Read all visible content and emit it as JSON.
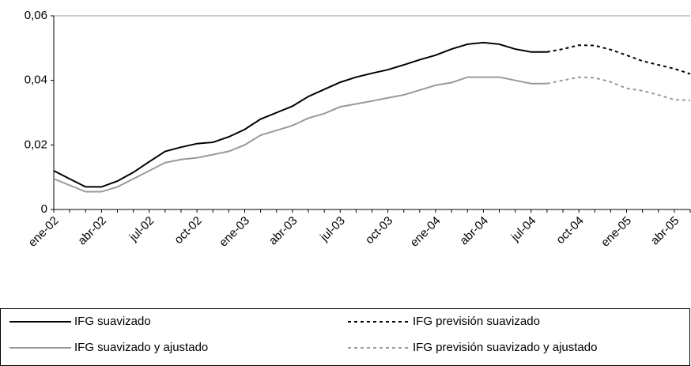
{
  "chart_data": {
    "type": "line",
    "categories": [
      "ene-02",
      null,
      null,
      "abr-02",
      null,
      null,
      "jul-02",
      null,
      null,
      "oct-02",
      null,
      null,
      "ene-03",
      null,
      null,
      "abr-03",
      null,
      null,
      "jul-03",
      null,
      null,
      "oct-03",
      null,
      null,
      "ene-04",
      null,
      null,
      "abr-04",
      null,
      null,
      "jul-04",
      null,
      null,
      "oct-04",
      null,
      null,
      "ene-05",
      null,
      null,
      "abr-05",
      null
    ],
    "series": [
      {
        "name": "IFG suavizado",
        "color": "#000000",
        "dashed": false,
        "values": [
          0.012,
          0.0095,
          0.007,
          0.007,
          0.0088,
          0.0115,
          0.0148,
          0.018,
          0.0193,
          0.0204,
          0.0208,
          0.0225,
          0.0248,
          0.028,
          0.03,
          0.032,
          0.035,
          0.0372,
          0.0394,
          0.041,
          0.0422,
          0.0433,
          0.0448,
          0.0464,
          0.0478,
          0.0497,
          0.0512,
          0.0517,
          0.0512,
          0.0497,
          0.0488,
          0.0488,
          null,
          null,
          null,
          null,
          null,
          null,
          null,
          null,
          null
        ]
      },
      {
        "name": "IFG previsión suavizado",
        "color": "#000000",
        "dashed": true,
        "values": [
          null,
          null,
          null,
          null,
          null,
          null,
          null,
          null,
          null,
          null,
          null,
          null,
          null,
          null,
          null,
          null,
          null,
          null,
          null,
          null,
          null,
          null,
          null,
          null,
          null,
          null,
          null,
          null,
          null,
          null,
          null,
          0.0488,
          0.0497,
          0.0509,
          0.0508,
          0.0495,
          0.0478,
          0.046,
          0.0448,
          0.0436,
          0.042
        ]
      },
      {
        "name": "IFG suavizado y ajustado",
        "color": "#999999",
        "dashed": false,
        "values": [
          0.0095,
          0.0075,
          0.0055,
          0.0055,
          0.007,
          0.0095,
          0.012,
          0.0145,
          0.0155,
          0.016,
          0.017,
          0.018,
          0.02,
          0.023,
          0.0245,
          0.026,
          0.0283,
          0.0297,
          0.0318,
          0.0327,
          0.0336,
          0.0346,
          0.0355,
          0.037,
          0.0385,
          0.0393,
          0.041,
          0.041,
          0.041,
          0.04,
          0.039,
          0.039,
          null,
          null,
          null,
          null,
          null,
          null,
          null,
          null,
          null
        ]
      },
      {
        "name": "IFG previsión suavizado y ajustado",
        "color": "#999999",
        "dashed": true,
        "values": [
          null,
          null,
          null,
          null,
          null,
          null,
          null,
          null,
          null,
          null,
          null,
          null,
          null,
          null,
          null,
          null,
          null,
          null,
          null,
          null,
          null,
          null,
          null,
          null,
          null,
          null,
          null,
          null,
          null,
          null,
          null,
          0.039,
          0.04,
          0.041,
          0.0408,
          0.0395,
          0.0375,
          0.0368,
          0.0355,
          0.034,
          0.0338
        ]
      }
    ],
    "ylim": [
      0,
      0.06
    ],
    "yticks": [
      0,
      {
        "value": 0.02,
        "label": "0,02"
      },
      {
        "value": 0.04,
        "label": "0,04"
      },
      {
        "value": 0.06,
        "label": "0,06"
      }
    ],
    "grid": false
  }
}
